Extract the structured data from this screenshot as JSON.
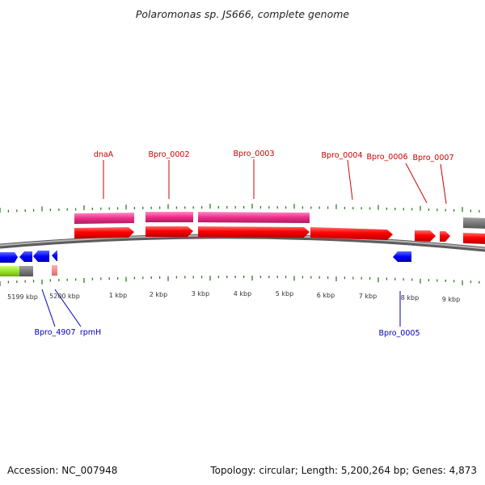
{
  "title": "Polaromonas sp. JS666, complete genome",
  "footer": {
    "accession": "Accession: NC_007948",
    "summary": "Topology: circular; Length: 5,200,264 bp; Genes: 4,873"
  },
  "colors": {
    "tick": "#2d7d1e",
    "backbone": "#8a8a8a",
    "label_top": "#cc0000",
    "label_bottom": "#0000bb",
    "forward_gene": "#ff0000",
    "forward_cds": "#ee2d8a",
    "reverse_gene": "#0000ff",
    "scale_text": "#333333"
  },
  "scale_labels": [
    "5199 kbp",
    "5200 kbp",
    "1 kbp",
    "2 kbp",
    "3 kbp",
    "4 kbp",
    "5 kbp",
    "6 kbp",
    "7 kbp",
    "8 kbp",
    "9 kbp"
  ],
  "top_labels": [
    "dnaA",
    "Bpro_0002",
    "Bpro_0003",
    "Bpro_0004",
    "Bpro_0006",
    "Bpro_0007"
  ],
  "bottom_labels": [
    "Bpro_4907",
    "rpmH",
    "Bpro_0005"
  ]
}
